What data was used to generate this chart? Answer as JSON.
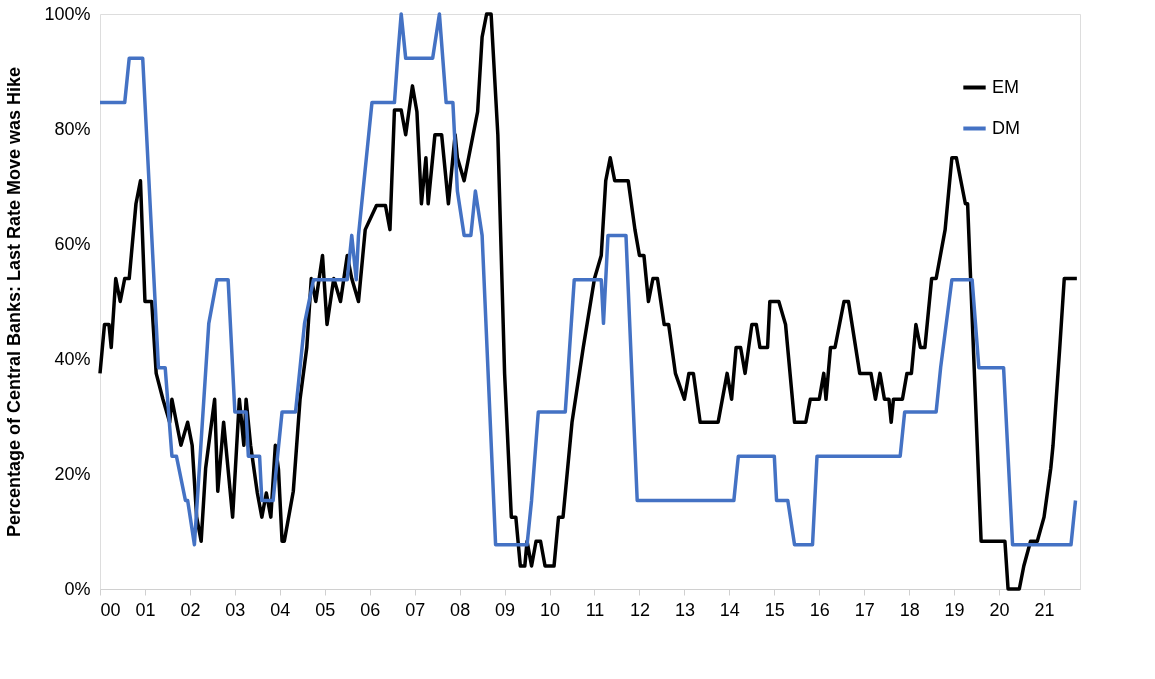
{
  "chart_data": {
    "type": "line",
    "ylabel": "Percentage of Central Banks: Last Rate Move was Hike",
    "xlim": [
      2000,
      2021.8
    ],
    "xticks": [
      {
        "value": 2000,
        "label": "00"
      },
      {
        "value": 2001,
        "label": "01"
      },
      {
        "value": 2002,
        "label": "02"
      },
      {
        "value": 2003,
        "label": "03"
      },
      {
        "value": 2004,
        "label": "04"
      },
      {
        "value": 2005,
        "label": "05"
      },
      {
        "value": 2006,
        "label": "06"
      },
      {
        "value": 2007,
        "label": "07"
      },
      {
        "value": 2008,
        "label": "08"
      },
      {
        "value": 2009,
        "label": "09"
      },
      {
        "value": 2010,
        "label": "10"
      },
      {
        "value": 2011,
        "label": "11"
      },
      {
        "value": 2012,
        "label": "12"
      },
      {
        "value": 2013,
        "label": "13"
      },
      {
        "value": 2014,
        "label": "14"
      },
      {
        "value": 2015,
        "label": "15"
      },
      {
        "value": 2016,
        "label": "16"
      },
      {
        "value": 2017,
        "label": "17"
      },
      {
        "value": 2018,
        "label": "18"
      },
      {
        "value": 2019,
        "label": "19"
      },
      {
        "value": 2020,
        "label": "20"
      },
      {
        "value": 2021,
        "label": "21"
      }
    ],
    "ylim": [
      0,
      100
    ],
    "yticks": [
      {
        "value": 0,
        "label": "0%"
      },
      {
        "value": 20,
        "label": "20%"
      },
      {
        "value": 40,
        "label": "40%"
      },
      {
        "value": 60,
        "label": "60%"
      },
      {
        "value": 80,
        "label": "80%"
      },
      {
        "value": 100,
        "label": "100%"
      }
    ],
    "grid": false,
    "legend": "top right",
    "marker": "none",
    "line_style": "solid",
    "series": [
      {
        "name": "EM",
        "color": "#000000",
        "x": [
          2000.0,
          2000.1,
          2000.2,
          2000.25,
          2000.35,
          2000.45,
          2000.55,
          2000.65,
          2000.8,
          2000.9,
          2001.0,
          2001.15,
          2001.25,
          2001.4,
          2001.55,
          2001.6,
          2001.7,
          2001.8,
          2001.95,
          2002.05,
          2002.15,
          2002.25,
          2002.35,
          2002.55,
          2002.62,
          2002.75,
          2002.95,
          2003.1,
          2003.2,
          2003.25,
          2003.35,
          2003.5,
          2003.6,
          2003.7,
          2003.8,
          2003.9,
          2003.97,
          2004.05,
          2004.1,
          2004.3,
          2004.45,
          2004.6,
          2004.7,
          2004.8,
          2004.95,
          2005.05,
          2005.2,
          2005.35,
          2005.5,
          2005.6,
          2005.75,
          2005.9,
          2006.15,
          2006.35,
          2006.45,
          2006.55,
          2006.7,
          2006.8,
          2006.95,
          2007.05,
          2007.15,
          2007.25,
          2007.3,
          2007.45,
          2007.6,
          2007.75,
          2007.9,
          2007.95,
          2008.1,
          2008.4,
          2008.5,
          2008.6,
          2008.7,
          2008.85,
          2009.0,
          2009.15,
          2009.25,
          2009.35,
          2009.45,
          2009.5,
          2009.6,
          2009.7,
          2009.8,
          2009.9,
          2010.1,
          2010.2,
          2010.3,
          2010.5,
          2010.75,
          2011.0,
          2011.15,
          2011.25,
          2011.35,
          2011.45,
          2011.75,
          2011.9,
          2012.0,
          2012.1,
          2012.2,
          2012.3,
          2012.4,
          2012.55,
          2012.65,
          2012.8,
          2013.0,
          2013.1,
          2013.2,
          2013.35,
          2013.75,
          2013.95,
          2014.05,
          2014.15,
          2014.25,
          2014.35,
          2014.5,
          2014.6,
          2014.68,
          2014.85,
          2014.9,
          2015.1,
          2015.25,
          2015.45,
          2015.7,
          2015.8,
          2016.0,
          2016.1,
          2016.15,
          2016.25,
          2016.35,
          2016.55,
          2016.65,
          2016.9,
          2017.15,
          2017.25,
          2017.35,
          2017.45,
          2017.55,
          2017.6,
          2017.65,
          2017.85,
          2017.95,
          2018.05,
          2018.15,
          2018.25,
          2018.35,
          2018.5,
          2018.6,
          2018.8,
          2018.95,
          2019.05,
          2019.25,
          2019.3,
          2019.6,
          2020.13,
          2020.2,
          2020.45,
          2020.55,
          2020.7,
          2020.85,
          2021.0,
          2021.15,
          2021.2,
          2021.35,
          2021.45,
          2021.73
        ],
        "values": [
          37.5,
          46,
          46,
          42,
          54,
          50,
          54,
          54,
          67,
          71,
          50,
          50,
          37.5,
          33,
          29,
          33,
          29,
          25,
          29,
          25,
          12.5,
          8.3,
          21,
          33,
          17,
          29,
          12.5,
          33,
          25,
          33,
          25,
          16.7,
          12.5,
          16.7,
          12.5,
          25,
          20.8,
          8.3,
          8.3,
          17,
          33,
          42,
          54,
          50,
          58,
          46,
          54,
          50,
          58,
          54,
          50,
          62.5,
          66.7,
          66.7,
          62.5,
          83.3,
          83.3,
          79,
          87.5,
          83,
          67,
          75,
          67,
          79,
          79,
          67,
          79,
          75,
          71,
          83,
          96,
          100,
          100,
          79,
          37.5,
          12.5,
          12.5,
          4,
          4,
          8.3,
          4,
          8.3,
          8.3,
          4,
          4,
          12.5,
          12.5,
          29,
          42,
          54,
          58,
          71,
          75,
          71,
          71,
          62.5,
          58,
          58,
          50,
          54,
          54,
          46,
          46,
          37.5,
          33,
          37.5,
          37.5,
          29,
          29,
          37.5,
          33,
          42,
          42,
          37.5,
          46,
          46,
          42,
          42,
          50,
          50,
          46,
          29,
          29,
          33,
          33,
          37.5,
          33,
          42,
          42,
          50,
          50,
          37.5,
          37.5,
          33,
          37.5,
          33,
          33,
          29,
          33,
          33,
          37.5,
          37.5,
          46,
          42,
          42,
          54,
          54,
          62.5,
          75,
          75,
          67,
          67,
          8.3,
          8.3,
          0,
          0,
          4,
          8.3,
          8.3,
          12.5,
          21,
          25,
          42,
          54,
          54
        ]
      },
      {
        "name": "DM",
        "color": "#4472c4",
        "x": [
          2000.0,
          2000.55,
          2000.65,
          2000.95,
          2001.3,
          2001.45,
          2001.6,
          2001.7,
          2001.9,
          2001.95,
          2002.1,
          2002.42,
          2002.6,
          2002.85,
          2003.0,
          2003.25,
          2003.3,
          2003.55,
          2003.6,
          2003.85,
          2003.95,
          2004.05,
          2004.35,
          2004.45,
          2004.55,
          2004.75,
          2005.5,
          2005.6,
          2005.7,
          2005.75,
          2005.85,
          2005.95,
          2006.05,
          2006.55,
          2006.62,
          2006.7,
          2006.8,
          2007.4,
          2007.55,
          2007.7,
          2007.85,
          2007.95,
          2008.1,
          2008.25,
          2008.35,
          2008.5,
          2008.8,
          2009.5,
          2009.6,
          2009.75,
          2010.35,
          2010.55,
          2011.15,
          2011.2,
          2011.3,
          2011.7,
          2011.95,
          2014.1,
          2014.2,
          2015.0,
          2015.05,
          2015.3,
          2015.45,
          2015.85,
          2015.95,
          2017.8,
          2017.9,
          2018.6,
          2018.7,
          2018.95,
          2019.4,
          2019.55,
          2020.1,
          2020.3,
          2021.6,
          2021.7
        ],
        "values": [
          84.6,
          84.6,
          92.3,
          92.3,
          38.5,
          38.5,
          23.1,
          23.1,
          15.4,
          15.4,
          7.7,
          46.2,
          53.8,
          53.8,
          30.8,
          30.8,
          23.1,
          23.1,
          15.4,
          15.4,
          23.1,
          30.8,
          30.8,
          38.5,
          46.2,
          53.8,
          53.8,
          61.5,
          53.8,
          61.5,
          69.2,
          76.9,
          84.6,
          84.6,
          92.3,
          100,
          92.3,
          92.3,
          100,
          84.6,
          84.6,
          69.2,
          61.5,
          61.5,
          69.2,
          61.5,
          7.7,
          7.7,
          15.4,
          30.8,
          30.8,
          53.8,
          53.8,
          46.2,
          61.5,
          61.5,
          15.4,
          15.4,
          23.1,
          23.1,
          15.4,
          15.4,
          7.7,
          7.7,
          23.1,
          23.1,
          30.8,
          30.8,
          38.5,
          53.8,
          53.8,
          38.5,
          38.5,
          7.7,
          7.7,
          15.4
        ]
      }
    ]
  }
}
